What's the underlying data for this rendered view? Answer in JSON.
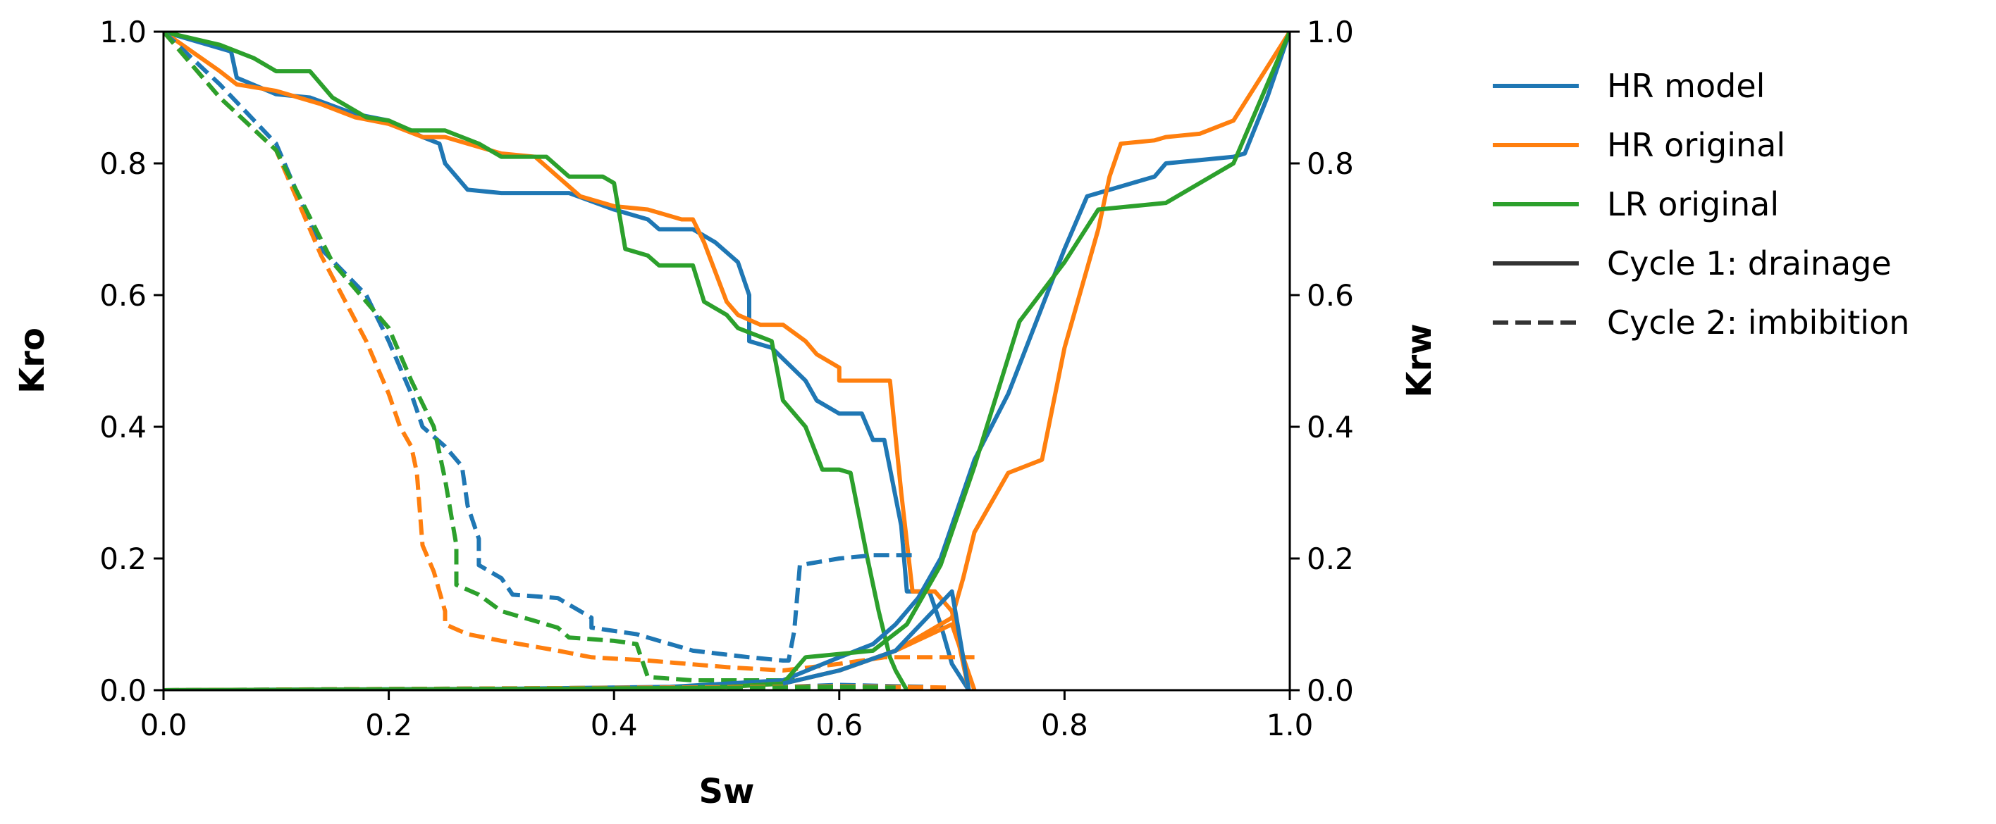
{
  "chart_data": {
    "type": "line",
    "xlabel": "Sw",
    "ylabel": "Kro",
    "ylabel_right": "Krw",
    "xlim": [
      0.0,
      1.0
    ],
    "ylim": [
      0.0,
      1.0
    ],
    "ylim_right": [
      0.0,
      1.0
    ],
    "xticks": [
      "0.0",
      "0.2",
      "0.4",
      "0.6",
      "0.8",
      "1.0"
    ],
    "yticks": [
      "0.0",
      "0.2",
      "0.4",
      "0.6",
      "0.8",
      "1.0"
    ],
    "yticks_right": [
      "0.0",
      "0.2",
      "0.4",
      "0.6",
      "0.8",
      "1.0"
    ],
    "grid": false,
    "legend_position": "outside-right-top",
    "colors": {
      "hr_model": "#1f77b4",
      "hr_original": "#ff7f0e",
      "lr_original": "#2ca02c",
      "style_key": "#333333"
    },
    "legend": [
      {
        "label": "HR model",
        "color": "#1f77b4",
        "dash": false
      },
      {
        "label": "HR original",
        "color": "#ff7f0e",
        "dash": false
      },
      {
        "label": "LR original",
        "color": "#2ca02c",
        "dash": false
      },
      {
        "label": "Cycle 1: drainage",
        "color": "#333333",
        "dash": false
      },
      {
        "label": "Cycle 2: imbibition",
        "color": "#333333",
        "dash": true
      }
    ],
    "series": [
      {
        "color": "#1f77b4",
        "dash": false,
        "points": [
          [
            0,
            1
          ],
          [
            0.06,
            0.97
          ],
          [
            0.065,
            0.93
          ],
          [
            0.1,
            0.905
          ],
          [
            0.13,
            0.9
          ],
          [
            0.17,
            0.875
          ],
          [
            0.2,
            0.865
          ],
          [
            0.23,
            0.84
          ],
          [
            0.245,
            0.83
          ],
          [
            0.25,
            0.8
          ],
          [
            0.27,
            0.76
          ],
          [
            0.3,
            0.755
          ],
          [
            0.36,
            0.755
          ],
          [
            0.4,
            0.73
          ],
          [
            0.43,
            0.715
          ],
          [
            0.44,
            0.7
          ],
          [
            0.47,
            0.7
          ],
          [
            0.49,
            0.68
          ],
          [
            0.51,
            0.65
          ],
          [
            0.52,
            0.6
          ],
          [
            0.52,
            0.53
          ],
          [
            0.54,
            0.52
          ],
          [
            0.57,
            0.47
          ],
          [
            0.58,
            0.44
          ],
          [
            0.6,
            0.42
          ],
          [
            0.62,
            0.42
          ],
          [
            0.63,
            0.38
          ],
          [
            0.64,
            0.38
          ],
          [
            0.655,
            0.25
          ],
          [
            0.66,
            0.15
          ],
          [
            0.68,
            0.15
          ],
          [
            0.69,
            0.1
          ],
          [
            0.7,
            0.04
          ],
          [
            0.715,
            0
          ]
        ]
      },
      {
        "color": "#ff7f0e",
        "dash": false,
        "points": [
          [
            0,
            1
          ],
          [
            0.05,
            0.94
          ],
          [
            0.065,
            0.92
          ],
          [
            0.1,
            0.91
          ],
          [
            0.14,
            0.89
          ],
          [
            0.17,
            0.87
          ],
          [
            0.2,
            0.86
          ],
          [
            0.23,
            0.84
          ],
          [
            0.25,
            0.84
          ],
          [
            0.3,
            0.815
          ],
          [
            0.33,
            0.81
          ],
          [
            0.35,
            0.78
          ],
          [
            0.37,
            0.75
          ],
          [
            0.4,
            0.735
          ],
          [
            0.43,
            0.73
          ],
          [
            0.46,
            0.715
          ],
          [
            0.47,
            0.715
          ],
          [
            0.48,
            0.68
          ],
          [
            0.5,
            0.59
          ],
          [
            0.51,
            0.57
          ],
          [
            0.53,
            0.555
          ],
          [
            0.55,
            0.555
          ],
          [
            0.57,
            0.53
          ],
          [
            0.58,
            0.51
          ],
          [
            0.6,
            0.49
          ],
          [
            0.6,
            0.47
          ],
          [
            0.64,
            0.47
          ],
          [
            0.645,
            0.47
          ],
          [
            0.655,
            0.3
          ],
          [
            0.665,
            0.15
          ],
          [
            0.685,
            0.15
          ],
          [
            0.7,
            0.12
          ],
          [
            0.715,
            0
          ]
        ]
      },
      {
        "color": "#2ca02c",
        "dash": false,
        "points": [
          [
            0,
            1
          ],
          [
            0.05,
            0.98
          ],
          [
            0.08,
            0.96
          ],
          [
            0.1,
            0.94
          ],
          [
            0.13,
            0.94
          ],
          [
            0.15,
            0.9
          ],
          [
            0.18,
            0.87
          ],
          [
            0.2,
            0.865
          ],
          [
            0.22,
            0.85
          ],
          [
            0.25,
            0.85
          ],
          [
            0.28,
            0.83
          ],
          [
            0.3,
            0.81
          ],
          [
            0.34,
            0.81
          ],
          [
            0.36,
            0.78
          ],
          [
            0.39,
            0.78
          ],
          [
            0.4,
            0.77
          ],
          [
            0.41,
            0.67
          ],
          [
            0.43,
            0.66
          ],
          [
            0.44,
            0.645
          ],
          [
            0.47,
            0.645
          ],
          [
            0.48,
            0.59
          ],
          [
            0.5,
            0.57
          ],
          [
            0.51,
            0.55
          ],
          [
            0.54,
            0.53
          ],
          [
            0.55,
            0.44
          ],
          [
            0.57,
            0.4
          ],
          [
            0.585,
            0.335
          ],
          [
            0.6,
            0.335
          ],
          [
            0.61,
            0.33
          ],
          [
            0.625,
            0.2
          ],
          [
            0.635,
            0.12
          ],
          [
            0.645,
            0.05
          ],
          [
            0.65,
            0.03
          ],
          [
            0.66,
            0
          ]
        ]
      },
      {
        "color": "#1f77b4",
        "dash": true,
        "points": [
          [
            0,
            1
          ],
          [
            0.05,
            0.92
          ],
          [
            0.1,
            0.83
          ],
          [
            0.14,
            0.67
          ],
          [
            0.18,
            0.6
          ],
          [
            0.2,
            0.53
          ],
          [
            0.22,
            0.45
          ],
          [
            0.23,
            0.4
          ],
          [
            0.25,
            0.37
          ],
          [
            0.265,
            0.34
          ],
          [
            0.27,
            0.28
          ],
          [
            0.28,
            0.23
          ],
          [
            0.28,
            0.19
          ],
          [
            0.3,
            0.17
          ],
          [
            0.31,
            0.145
          ],
          [
            0.35,
            0.14
          ],
          [
            0.36,
            0.13
          ],
          [
            0.38,
            0.11
          ],
          [
            0.38,
            0.095
          ],
          [
            0.42,
            0.085
          ],
          [
            0.44,
            0.075
          ],
          [
            0.47,
            0.06
          ],
          [
            0.52,
            0.05
          ],
          [
            0.55,
            0.045
          ],
          [
            0.555,
            0.045
          ],
          [
            0.56,
            0.09
          ],
          [
            0.565,
            0.19
          ],
          [
            0.6,
            0.2
          ],
          [
            0.63,
            0.205
          ],
          [
            0.67,
            0.205
          ]
        ]
      },
      {
        "color": "#ff7f0e",
        "dash": true,
        "points": [
          [
            0,
            1
          ],
          [
            0.05,
            0.9
          ],
          [
            0.1,
            0.82
          ],
          [
            0.14,
            0.66
          ],
          [
            0.18,
            0.53
          ],
          [
            0.2,
            0.45
          ],
          [
            0.21,
            0.4
          ],
          [
            0.22,
            0.37
          ],
          [
            0.225,
            0.33
          ],
          [
            0.23,
            0.22
          ],
          [
            0.24,
            0.18
          ],
          [
            0.25,
            0.12
          ],
          [
            0.25,
            0.1
          ],
          [
            0.27,
            0.085
          ],
          [
            0.3,
            0.075
          ],
          [
            0.35,
            0.06
          ],
          [
            0.38,
            0.05
          ],
          [
            0.43,
            0.045
          ],
          [
            0.5,
            0.035
          ],
          [
            0.55,
            0.03
          ],
          [
            0.6,
            0.04
          ],
          [
            0.64,
            0.05
          ],
          [
            0.72,
            0.05
          ]
        ]
      },
      {
        "color": "#2ca02c",
        "dash": true,
        "points": [
          [
            0,
            1
          ],
          [
            0.05,
            0.9
          ],
          [
            0.1,
            0.82
          ],
          [
            0.15,
            0.65
          ],
          [
            0.2,
            0.55
          ],
          [
            0.22,
            0.47
          ],
          [
            0.24,
            0.4
          ],
          [
            0.25,
            0.32
          ],
          [
            0.26,
            0.22
          ],
          [
            0.26,
            0.16
          ],
          [
            0.28,
            0.145
          ],
          [
            0.3,
            0.12
          ],
          [
            0.33,
            0.105
          ],
          [
            0.35,
            0.095
          ],
          [
            0.36,
            0.08
          ],
          [
            0.4,
            0.075
          ],
          [
            0.42,
            0.07
          ],
          [
            0.43,
            0.02
          ],
          [
            0.47,
            0.015
          ],
          [
            0.52,
            0.015
          ],
          [
            0.55,
            0.015
          ],
          [
            0.56,
            0.02
          ]
        ]
      },
      {
        "color": "#1f77b4",
        "dash": false,
        "points": [
          [
            0,
            0
          ],
          [
            0.3,
            0.002
          ],
          [
            0.45,
            0.005
          ],
          [
            0.55,
            0.015
          ],
          [
            0.6,
            0.05
          ],
          [
            0.63,
            0.07
          ],
          [
            0.65,
            0.1
          ],
          [
            0.67,
            0.14
          ],
          [
            0.69,
            0.2
          ],
          [
            0.72,
            0.35
          ],
          [
            0.75,
            0.45
          ],
          [
            0.8,
            0.67
          ],
          [
            0.82,
            0.75
          ],
          [
            0.85,
            0.765
          ],
          [
            0.88,
            0.78
          ],
          [
            0.89,
            0.8
          ],
          [
            0.95,
            0.81
          ],
          [
            0.96,
            0.815
          ],
          [
            0.98,
            0.9
          ],
          [
            1,
            1
          ]
        ]
      },
      {
        "color": "#ff7f0e",
        "dash": false,
        "points": [
          [
            0,
            0
          ],
          [
            0.4,
            0.002
          ],
          [
            0.5,
            0.005
          ],
          [
            0.55,
            0.01
          ],
          [
            0.6,
            0.03
          ],
          [
            0.65,
            0.06
          ],
          [
            0.7,
            0.11
          ],
          [
            0.71,
            0.17
          ],
          [
            0.72,
            0.24
          ],
          [
            0.75,
            0.33
          ],
          [
            0.78,
            0.35
          ],
          [
            0.8,
            0.52
          ],
          [
            0.83,
            0.7
          ],
          [
            0.84,
            0.78
          ],
          [
            0.85,
            0.83
          ],
          [
            0.88,
            0.835
          ],
          [
            0.89,
            0.84
          ],
          [
            0.92,
            0.845
          ],
          [
            0.95,
            0.865
          ],
          [
            1,
            1
          ]
        ]
      },
      {
        "color": "#2ca02c",
        "dash": false,
        "points": [
          [
            0,
            0
          ],
          [
            0.4,
            0.002
          ],
          [
            0.5,
            0.005
          ],
          [
            0.55,
            0.01
          ],
          [
            0.57,
            0.05
          ],
          [
            0.6,
            0.055
          ],
          [
            0.63,
            0.06
          ],
          [
            0.66,
            0.1
          ],
          [
            0.69,
            0.19
          ],
          [
            0.72,
            0.34
          ],
          [
            0.76,
            0.56
          ],
          [
            0.8,
            0.65
          ],
          [
            0.83,
            0.73
          ],
          [
            0.89,
            0.74
          ],
          [
            0.95,
            0.8
          ],
          [
            1,
            1
          ]
        ]
      },
      {
        "color": "#1f77b4",
        "dash": true,
        "points": [
          [
            0,
            0
          ],
          [
            0.55,
            0.005
          ],
          [
            0.6,
            0.008
          ],
          [
            0.65,
            0.006
          ],
          [
            0.68,
            0.005
          ]
        ]
      },
      {
        "color": "#ff7f0e",
        "dash": true,
        "points": [
          [
            0,
            0
          ],
          [
            0.55,
            0.005
          ],
          [
            0.6,
            0.006
          ],
          [
            0.7,
            0.004
          ]
        ]
      },
      {
        "color": "#2ca02c",
        "dash": true,
        "points": [
          [
            0,
            0
          ],
          [
            0.55,
            0.004
          ],
          [
            0.6,
            0.005
          ],
          [
            0.65,
            0.004
          ]
        ]
      },
      {
        "color": "#ff7f0e",
        "dash": false,
        "points": [
          [
            0.6,
            0.03
          ],
          [
            0.65,
            0.06
          ],
          [
            0.7,
            0.1
          ],
          [
            0.72,
            0
          ]
        ]
      },
      {
        "color": "#1f77b4",
        "dash": false,
        "points": [
          [
            0.55,
            0.01
          ],
          [
            0.6,
            0.03
          ],
          [
            0.65,
            0.06
          ],
          [
            0.7,
            0.15
          ],
          [
            0.715,
            0
          ]
        ]
      }
    ]
  }
}
